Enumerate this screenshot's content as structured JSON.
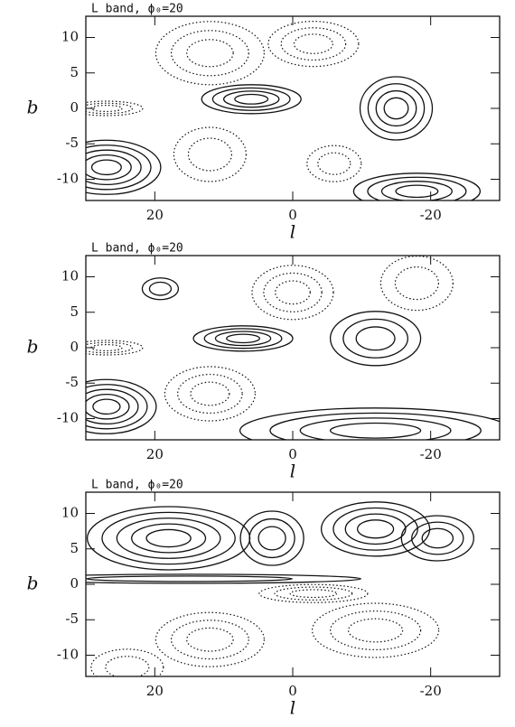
{
  "chart_data": [
    {
      "type": "contour",
      "title": "L band, ϕ₀=20",
      "x_label": "l",
      "y_label": "b",
      "xlim": [
        30,
        -30
      ],
      "ylim": [
        -13,
        13
      ],
      "xticks": [
        20,
        0,
        -20
      ],
      "yticks": [
        10,
        5,
        0,
        -5,
        -10
      ]
    },
    {
      "type": "contour",
      "title": "L band, ϕ₀=20",
      "x_label": "l",
      "y_label": "b",
      "xlim": [
        30,
        -30
      ],
      "ylim": [
        -13,
        13
      ],
      "xticks": [
        20,
        0,
        -20
      ],
      "yticks": [
        10,
        5,
        0,
        -5,
        -10
      ]
    },
    {
      "type": "contour",
      "title": "L band, ϕ₀=20",
      "x_label": "l",
      "y_label": "b",
      "xlim": [
        30,
        -30
      ],
      "ylim": [
        -13,
        13
      ],
      "xticks": [
        20,
        0,
        -20
      ],
      "yticks": [
        10,
        5,
        0,
        -5,
        -10
      ]
    }
  ]
}
